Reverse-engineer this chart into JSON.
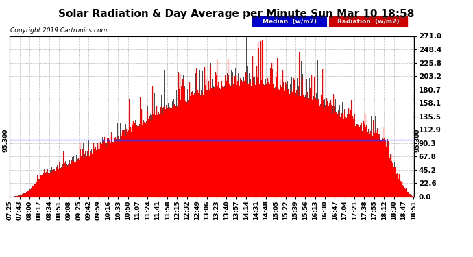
{
  "title": "Solar Radiation & Day Average per Minute Sun Mar 10 18:58",
  "copyright": "Copyright 2019 Cartronics.com",
  "ymin": 0.0,
  "ymax": 271.0,
  "yticks": [
    0.0,
    22.6,
    45.2,
    67.8,
    90.3,
    112.9,
    135.5,
    158.1,
    180.7,
    203.2,
    225.8,
    248.4,
    271.0
  ],
  "median_value": 95.3,
  "bar_color": "#FF0000",
  "median_line_color": "#0000CC",
  "background_color": "#FFFFFF",
  "plot_bg_color": "#FFFFFF",
  "grid_color": "#BBBBBB",
  "legend_median_bg": "#0000CC",
  "legend_radiation_bg": "#CC0000",
  "xtick_labels": [
    "07:25",
    "07:43",
    "08:00",
    "08:17",
    "08:34",
    "08:51",
    "09:08",
    "09:25",
    "09:42",
    "09:59",
    "10:16",
    "10:33",
    "10:50",
    "11:07",
    "11:24",
    "11:41",
    "11:58",
    "12:15",
    "12:32",
    "12:49",
    "13:06",
    "13:23",
    "13:40",
    "13:57",
    "14:14",
    "14:31",
    "14:48",
    "15:05",
    "15:22",
    "15:39",
    "15:56",
    "16:13",
    "16:30",
    "16:47",
    "17:04",
    "17:21",
    "17:38",
    "17:55",
    "18:12",
    "18:30",
    "18:47",
    "18:51"
  ]
}
